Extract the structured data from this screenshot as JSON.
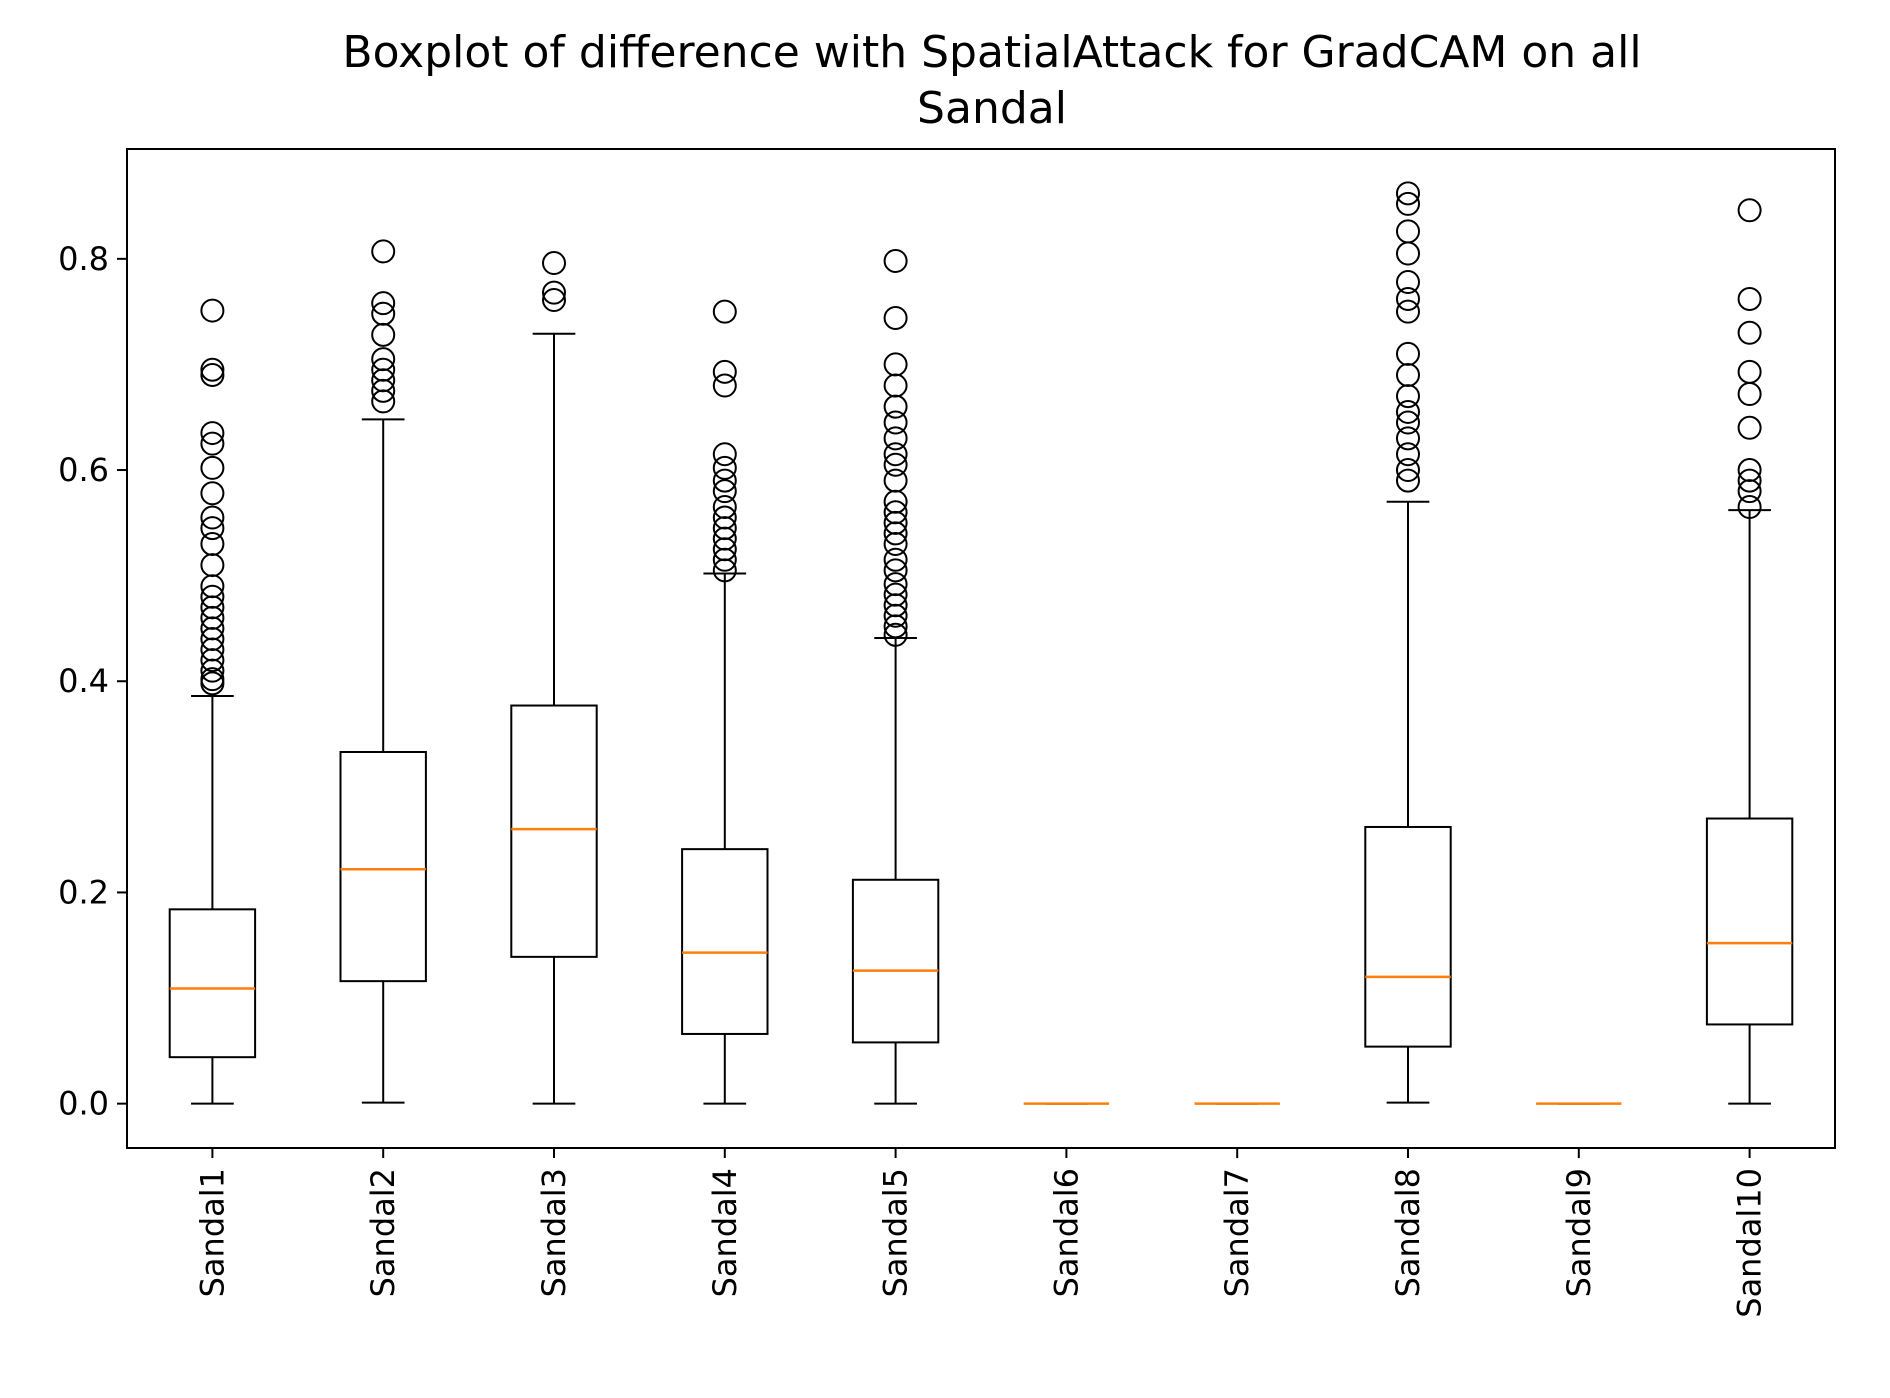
{
  "chart_data": {
    "type": "boxplot",
    "title": "Boxplot of difference with SpatialAttack for GradCAM on all Sandal",
    "title_lines": [
      "Boxplot of difference with SpatialAttack for GradCAM on all",
      "Sandal"
    ],
    "xlabel": "",
    "ylabel": "",
    "ylim": [
      -0.042,
      0.904
    ],
    "yticks": [
      0.0,
      0.2,
      0.4,
      0.6,
      0.8
    ],
    "ytick_labels": [
      "0.0",
      "0.2",
      "0.4",
      "0.6",
      "0.8"
    ],
    "grid": false,
    "legend": "none",
    "categories": [
      "Sandal1",
      "Sandal2",
      "Sandal3",
      "Sandal4",
      "Sandal5",
      "Sandal6",
      "Sandal7",
      "Sandal8",
      "Sandal9",
      "Sandal10"
    ],
    "colors": {
      "box": "#000000",
      "median": "#ff7f0e",
      "outlier": "#000000",
      "background": "#ffffff"
    },
    "boxes": [
      {
        "name": "Sandal1",
        "whisker_low": 0.0,
        "q1": 0.044,
        "median": 0.109,
        "q3": 0.184,
        "whisker_high": 0.386,
        "outliers": [
          0.398,
          0.402,
          0.41,
          0.42,
          0.43,
          0.44,
          0.45,
          0.46,
          0.47,
          0.48,
          0.49,
          0.51,
          0.53,
          0.545,
          0.555,
          0.578,
          0.602,
          0.625,
          0.635,
          0.69,
          0.695,
          0.751
        ]
      },
      {
        "name": "Sandal2",
        "whisker_low": 0.001,
        "q1": 0.116,
        "median": 0.222,
        "q3": 0.333,
        "whisker_high": 0.648,
        "outliers": [
          0.665,
          0.675,
          0.685,
          0.695,
          0.705,
          0.728,
          0.748,
          0.758,
          0.807
        ]
      },
      {
        "name": "Sandal3",
        "whisker_low": 0.0,
        "q1": 0.139,
        "median": 0.26,
        "q3": 0.377,
        "whisker_high": 0.729,
        "outliers": [
          0.761,
          0.768,
          0.796
        ]
      },
      {
        "name": "Sandal4",
        "whisker_low": 0.0,
        "q1": 0.066,
        "median": 0.143,
        "q3": 0.241,
        "whisker_high": 0.502,
        "outliers": [
          0.505,
          0.515,
          0.525,
          0.535,
          0.545,
          0.555,
          0.565,
          0.58,
          0.59,
          0.602,
          0.615,
          0.68,
          0.693,
          0.75
        ]
      },
      {
        "name": "Sandal5",
        "whisker_low": 0.0,
        "q1": 0.058,
        "median": 0.126,
        "q3": 0.212,
        "whisker_high": 0.441,
        "outliers": [
          0.444,
          0.452,
          0.462,
          0.472,
          0.482,
          0.492,
          0.505,
          0.515,
          0.53,
          0.54,
          0.55,
          0.56,
          0.57,
          0.59,
          0.605,
          0.615,
          0.63,
          0.645,
          0.66,
          0.68,
          0.7,
          0.744,
          0.798
        ]
      },
      {
        "name": "Sandal6",
        "whisker_low": 0.0,
        "q1": 0.0,
        "median": 0.0,
        "q3": 0.0,
        "whisker_high": 0.0,
        "outliers": []
      },
      {
        "name": "Sandal7",
        "whisker_low": 0.0,
        "q1": 0.0,
        "median": 0.0,
        "q3": 0.0,
        "whisker_high": 0.0,
        "outliers": []
      },
      {
        "name": "Sandal8",
        "whisker_low": 0.001,
        "q1": 0.054,
        "median": 0.12,
        "q3": 0.262,
        "whisker_high": 0.57,
        "outliers": [
          0.59,
          0.6,
          0.615,
          0.63,
          0.645,
          0.655,
          0.67,
          0.69,
          0.71,
          0.75,
          0.762,
          0.778,
          0.805,
          0.826,
          0.852,
          0.862
        ]
      },
      {
        "name": "Sandal9",
        "whisker_low": 0.0,
        "q1": 0.0,
        "median": 0.0,
        "q3": 0.0,
        "whisker_high": 0.0,
        "outliers": []
      },
      {
        "name": "Sandal10",
        "whisker_low": 0.0,
        "q1": 0.075,
        "median": 0.152,
        "q3": 0.27,
        "whisker_high": 0.562,
        "outliers": [
          0.565,
          0.58,
          0.59,
          0.6,
          0.64,
          0.672,
          0.693,
          0.73,
          0.762,
          0.846
        ]
      }
    ]
  }
}
